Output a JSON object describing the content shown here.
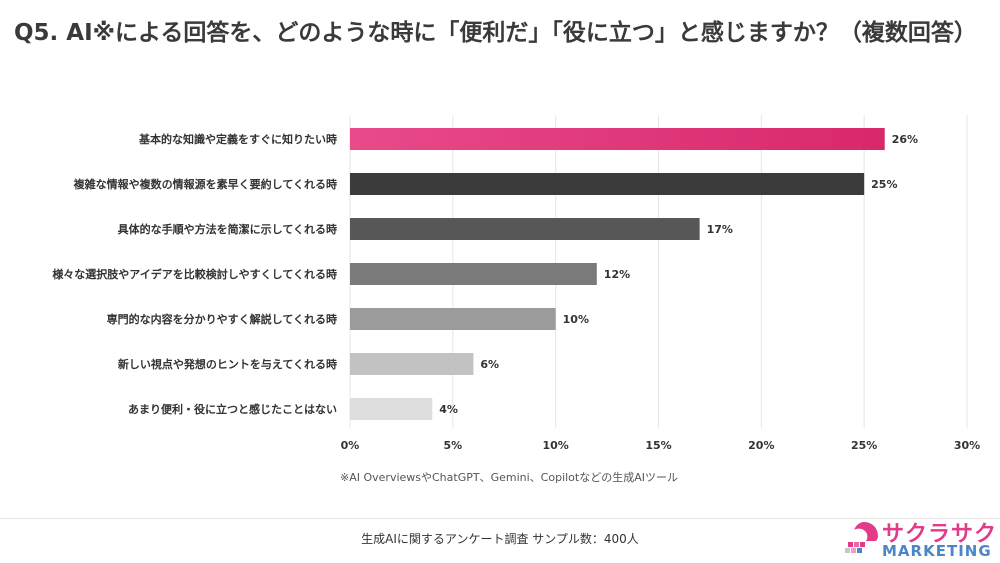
{
  "title": "Q5. AI※による回答を、どのような時に「便利だ」「役に立つ」と感じますか？（複数回答）",
  "footnote": "※AI OverviewsやChatGPT、Gemini、Copilotなどの生成AIツール",
  "source": "生成AIに関するアンケート調査 サンプル数：400人",
  "logo": {
    "line1": "サクラサク",
    "line2": "MARKETING"
  },
  "colors": {
    "accent_start": "#e84a8a",
    "accent_end": "#d8286c",
    "bars": [
      "#e0306f",
      "#3b3b3b",
      "#575757",
      "#7a7a7a",
      "#9b9b9b",
      "#c2c2c2",
      "#dedede"
    ],
    "grid": "#e6e6e6"
  },
  "chart_data": {
    "type": "bar",
    "orientation": "horizontal",
    "categories": [
      "基本的な知識や定義をすぐに知りたい時",
      "複雑な情報や複数の情報源を素早く要約してくれる時",
      "具体的な手順や方法を简潔に示してくれる時",
      "様々な選択肢やアイデアを比較検討しやすくしてくれる時",
      "専門的な内容を分かりやすく解説してくれる時",
      "新しい視点や発想のヒントを与えてくれる時",
      "あまり便利・役に立つと感じたことはない"
    ],
    "values": [
      26,
      25,
      17,
      12,
      10,
      6,
      4
    ],
    "data_labels": [
      "26%",
      "25%",
      "17%",
      "12%",
      "10%",
      "6%",
      "4%"
    ],
    "xlim": [
      0,
      30
    ],
    "xticks": [
      0,
      5,
      10,
      15,
      20,
      25,
      30
    ],
    "xtick_labels": [
      "0%",
      "5%",
      "10%",
      "15%",
      "20%",
      "25%",
      "30%"
    ],
    "grid": true,
    "legend": "none",
    "xlabel": "",
    "ylabel": ""
  }
}
